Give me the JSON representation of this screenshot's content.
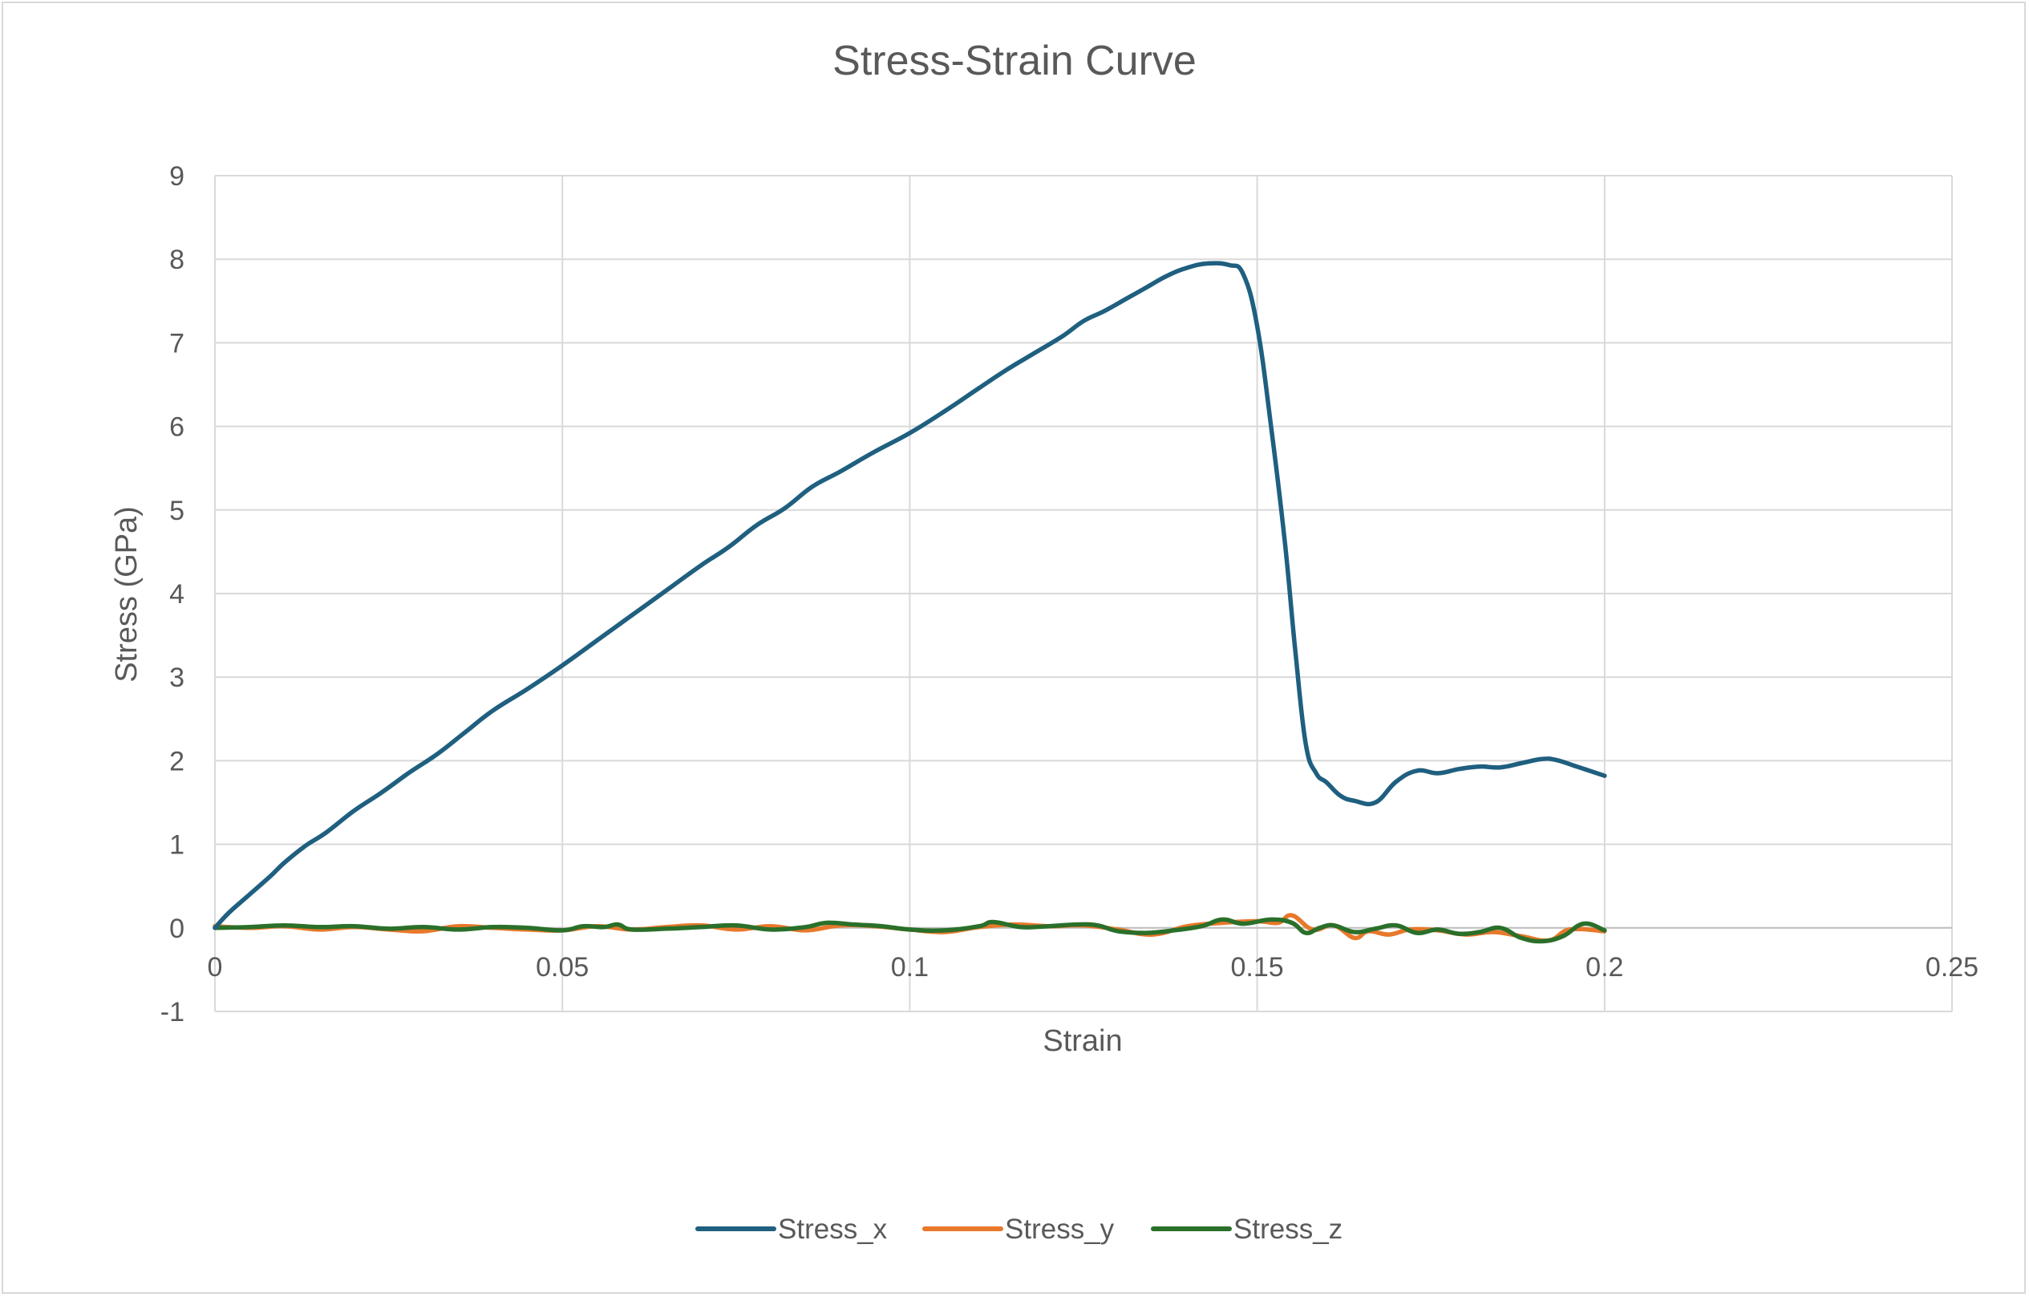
{
  "chart_data": {
    "type": "line",
    "title": "Stress-Strain Curve",
    "xlabel": "Strain",
    "ylabel": "Stress (GPa)",
    "xlim": [
      0,
      0.25
    ],
    "ylim": [
      -1,
      9
    ],
    "xticks": [
      0,
      0.05,
      0.1,
      0.15,
      0.2,
      0.25
    ],
    "xtick_labels": [
      "0",
      "0.05",
      "0.1",
      "0.15",
      "0.2",
      "0.25"
    ],
    "yticks": [
      -1,
      0,
      1,
      2,
      3,
      4,
      5,
      6,
      7,
      8,
      9
    ],
    "ytick_labels": [
      "-1",
      "0",
      "1",
      "2",
      "3",
      "4",
      "5",
      "6",
      "7",
      "8",
      "9"
    ],
    "grid": true,
    "legend_position": "bottom",
    "series": [
      {
        "name": "Stress_x",
        "color": "#1f5f7f",
        "x": [
          0,
          0.002,
          0.005,
          0.008,
          0.01,
          0.013,
          0.016,
          0.02,
          0.024,
          0.028,
          0.032,
          0.036,
          0.04,
          0.045,
          0.05,
          0.055,
          0.058,
          0.062,
          0.066,
          0.07,
          0.074,
          0.078,
          0.082,
          0.086,
          0.09,
          0.095,
          0.1,
          0.105,
          0.11,
          0.114,
          0.118,
          0.122,
          0.125,
          0.128,
          0.131,
          0.134,
          0.137,
          0.14,
          0.143,
          0.146,
          0.148,
          0.15,
          0.152,
          0.154,
          0.1555,
          0.157,
          0.1585,
          0.16,
          0.162,
          0.164,
          0.167,
          0.17,
          0.173,
          0.176,
          0.179,
          0.182,
          0.185,
          0.188,
          0.191,
          0.193,
          0.196,
          0.2
        ],
        "y": [
          0,
          0.18,
          0.4,
          0.62,
          0.78,
          0.98,
          1.14,
          1.4,
          1.62,
          1.86,
          2.08,
          2.34,
          2.6,
          2.86,
          3.14,
          3.44,
          3.62,
          3.86,
          4.1,
          4.34,
          4.56,
          4.82,
          5.02,
          5.28,
          5.46,
          5.7,
          5.92,
          6.18,
          6.46,
          6.68,
          6.88,
          7.08,
          7.26,
          7.38,
          7.52,
          7.66,
          7.8,
          7.9,
          7.95,
          7.93,
          7.82,
          7.2,
          6.0,
          4.6,
          3.3,
          2.2,
          1.85,
          1.74,
          1.58,
          1.52,
          1.5,
          1.75,
          1.88,
          1.85,
          1.9,
          1.93,
          1.92,
          1.97,
          2.02,
          2.01,
          1.93,
          1.82
        ]
      },
      {
        "name": "Stress_y",
        "color": "#e8782b",
        "x": [
          0,
          0.005,
          0.01,
          0.015,
          0.02,
          0.025,
          0.03,
          0.035,
          0.04,
          0.045,
          0.05,
          0.055,
          0.06,
          0.065,
          0.07,
          0.075,
          0.08,
          0.085,
          0.09,
          0.095,
          0.1,
          0.105,
          0.11,
          0.115,
          0.12,
          0.125,
          0.13,
          0.135,
          0.14,
          0.145,
          0.15,
          0.153,
          0.155,
          0.158,
          0.161,
          0.164,
          0.166,
          0.169,
          0.172,
          0.176,
          0.18,
          0.184,
          0.188,
          0.192,
          0.195,
          0.2
        ],
        "y": [
          0.02,
          0,
          0.02,
          -0.02,
          0.01,
          -0.02,
          -0.04,
          0.02,
          0,
          -0.02,
          -0.03,
          0.02,
          -0.02,
          0.01,
          0.03,
          -0.02,
          0.02,
          -0.03,
          0.03,
          0.02,
          -0.02,
          -0.05,
          0.01,
          0.04,
          0.02,
          0.03,
          -0.02,
          -0.08,
          0.02,
          0.06,
          0.08,
          0.06,
          0.15,
          -0.02,
          0.03,
          -0.12,
          -0.04,
          -0.08,
          -0.02,
          -0.03,
          -0.08,
          -0.05,
          -0.1,
          -0.15,
          -0.02,
          -0.04
        ]
      },
      {
        "name": "Stress_z",
        "color": "#2a6f2a",
        "x": [
          0,
          0.005,
          0.01,
          0.015,
          0.02,
          0.025,
          0.03,
          0.035,
          0.04,
          0.045,
          0.05,
          0.053,
          0.056,
          0.058,
          0.06,
          0.065,
          0.07,
          0.075,
          0.08,
          0.085,
          0.088,
          0.092,
          0.096,
          0.1,
          0.105,
          0.11,
          0.112,
          0.116,
          0.12,
          0.124,
          0.127,
          0.13,
          0.134,
          0.138,
          0.142,
          0.145,
          0.148,
          0.152,
          0.155,
          0.157,
          0.159,
          0.161,
          0.164,
          0.167,
          0.17,
          0.173,
          0.176,
          0.179,
          0.182,
          0.185,
          0.188,
          0.191,
          0.194,
          0.197,
          0.2
        ],
        "y": [
          0,
          0.01,
          0.03,
          0.01,
          0.02,
          -0.01,
          0.01,
          -0.02,
          0.01,
          0,
          -0.03,
          0.02,
          0.01,
          0.04,
          -0.02,
          -0.01,
          0.01,
          0.03,
          -0.02,
          0.01,
          0.06,
          0.04,
          0.02,
          -0.02,
          -0.03,
          0.02,
          0.07,
          0.01,
          0.02,
          0.04,
          0.03,
          -0.04,
          -0.06,
          -0.03,
          0.02,
          0.1,
          0.05,
          0.1,
          0.06,
          -0.06,
          0.0,
          0.03,
          -0.05,
          -0.01,
          0.03,
          -0.06,
          -0.02,
          -0.07,
          -0.05,
          0.0,
          -0.12,
          -0.16,
          -0.1,
          0.05,
          -0.03
        ]
      }
    ]
  }
}
